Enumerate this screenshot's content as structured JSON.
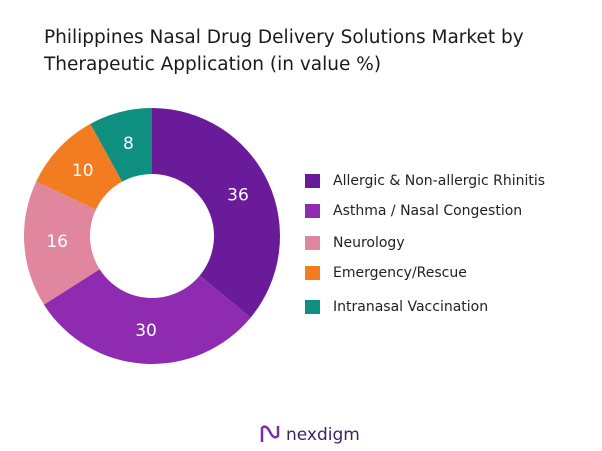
{
  "chart_data": {
    "type": "donut",
    "title": "Philippines Nasal Drug Delivery Solutions Market by Therapeutic Application (in value %)",
    "categories": [
      "Allergic & Non-allergic Rhinitis",
      "Asthma / Nasal Congestion",
      "Neurology",
      "Emergency/Rescue",
      "Intranasal Vaccination"
    ],
    "values": [
      36,
      30,
      16,
      10,
      8
    ],
    "colors": [
      "#6a1b9a",
      "#8e2bb0",
      "#e0879f",
      "#f47c20",
      "#0f8f80"
    ],
    "legend": "right"
  },
  "logo": "nexdigm"
}
